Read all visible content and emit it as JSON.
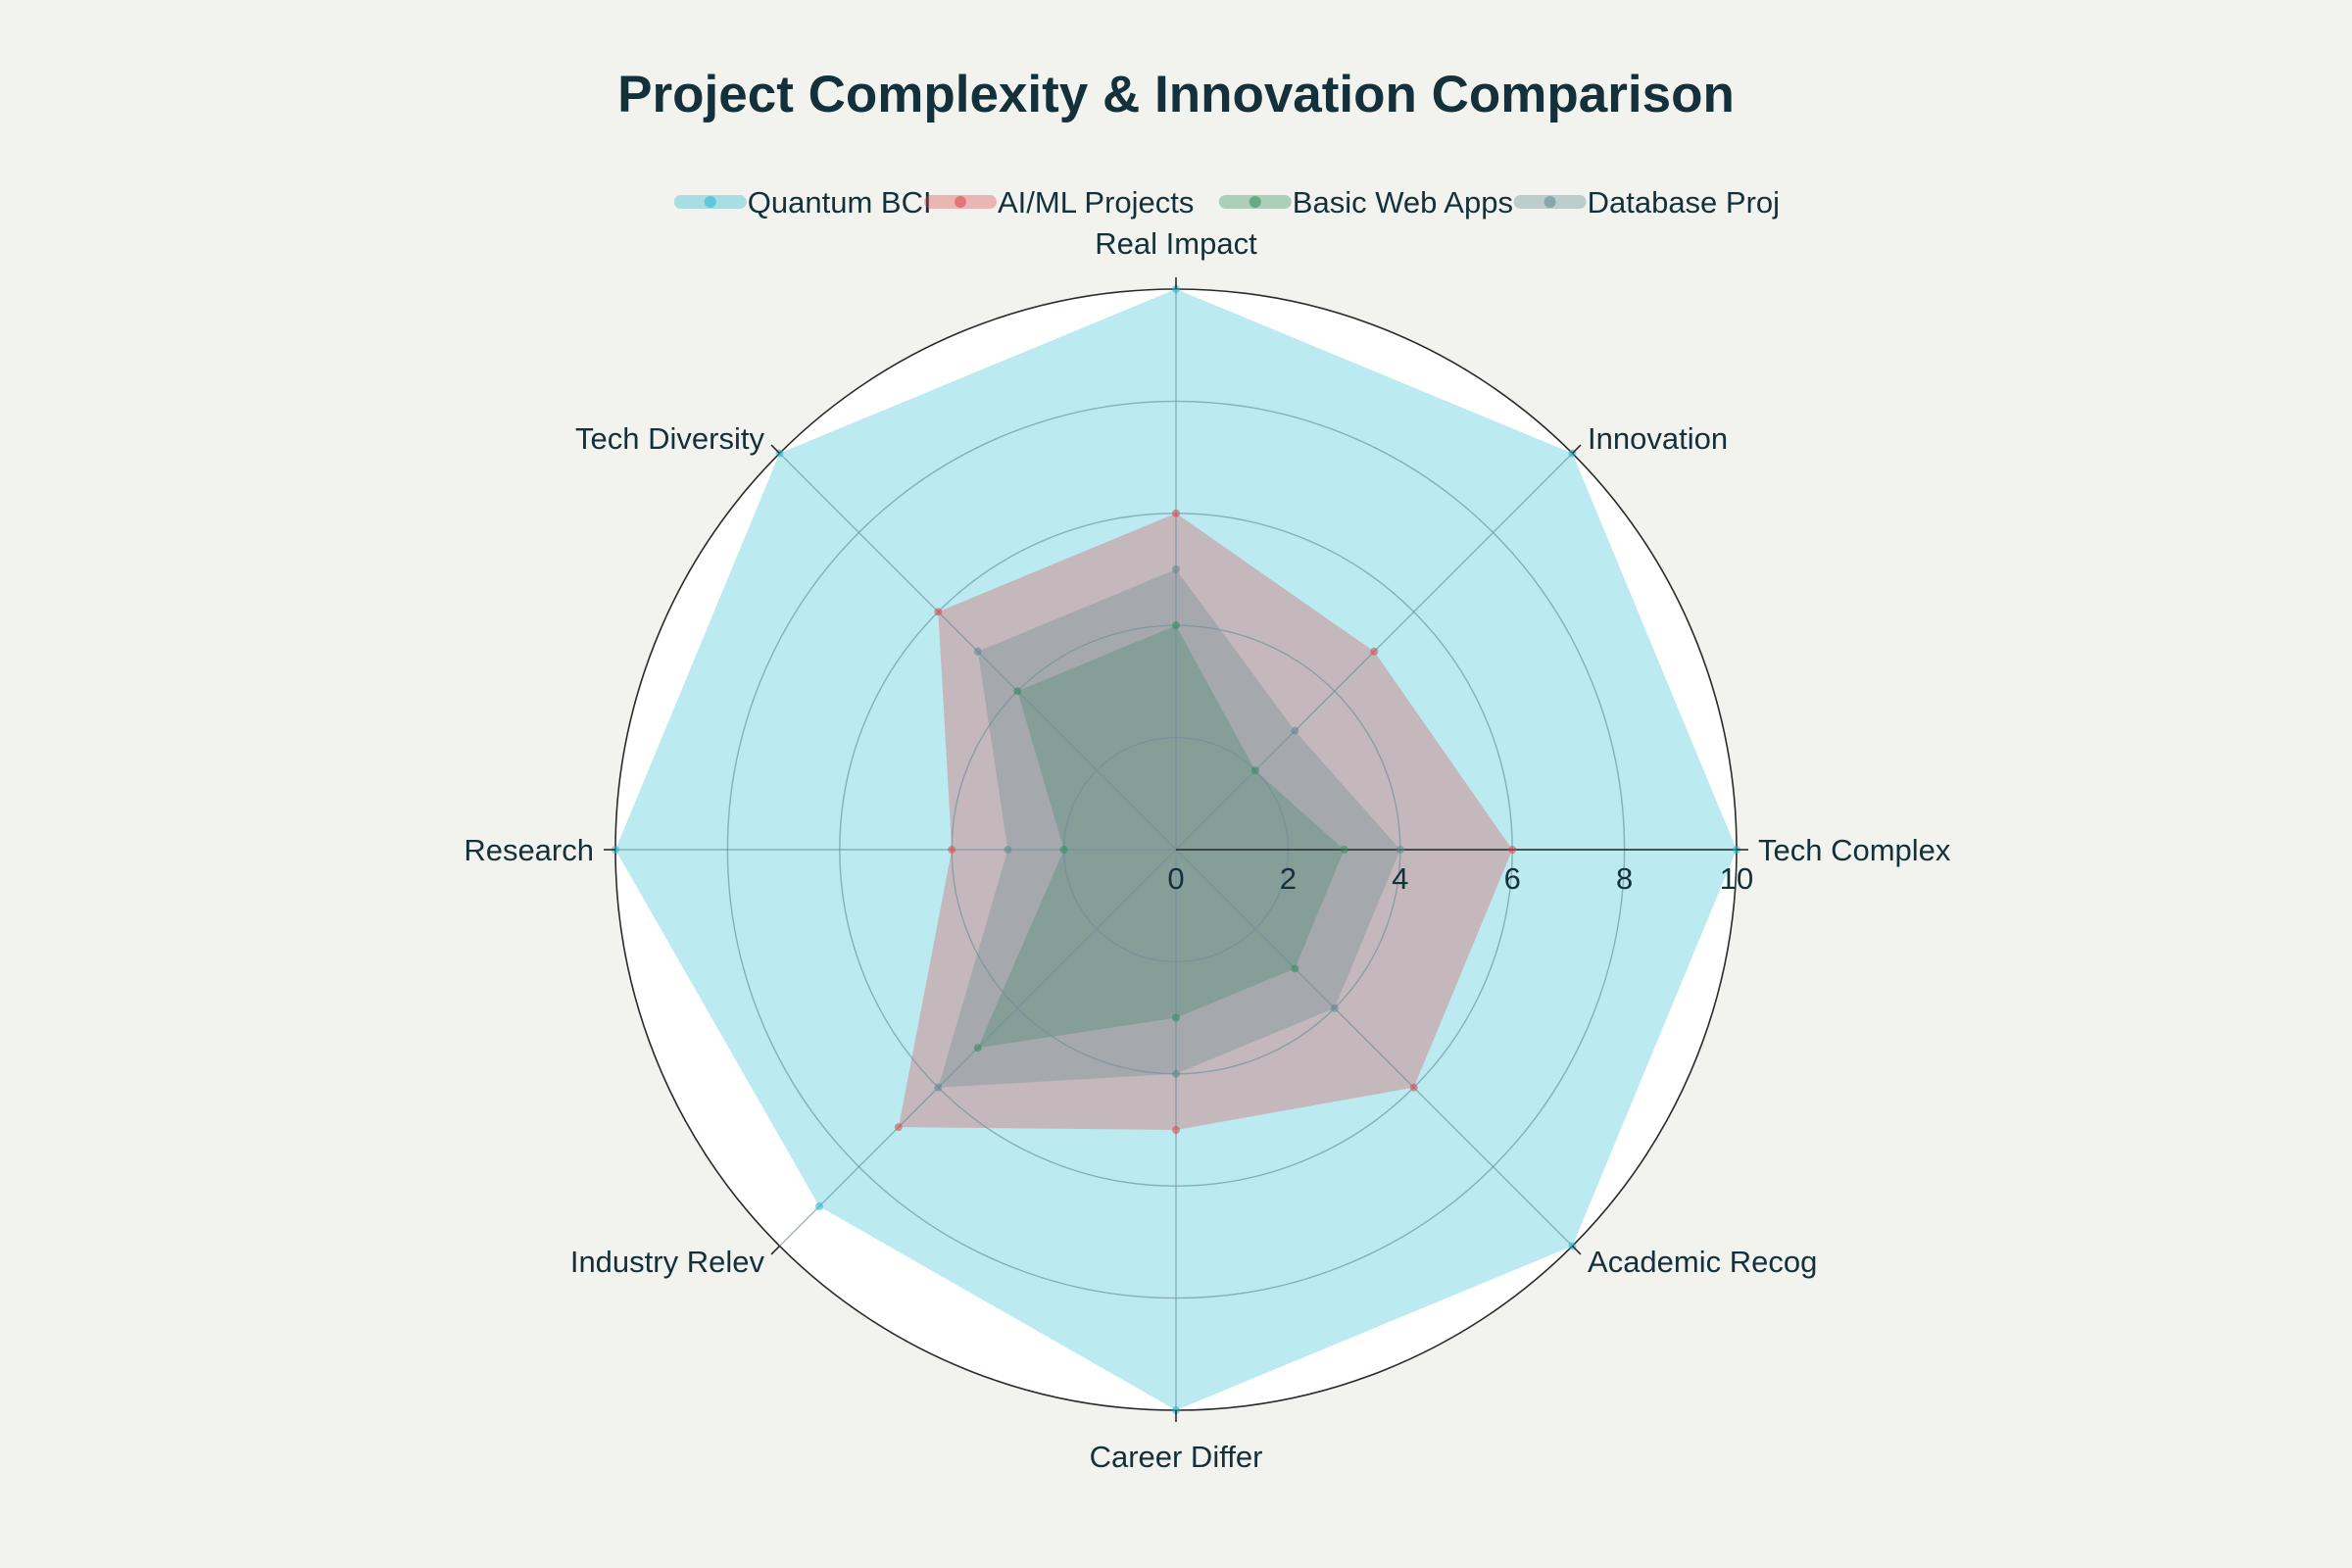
{
  "chart_data": {
    "type": "radar",
    "title": "Project Complexity & Innovation Comparison",
    "axes": [
      "Tech Complex",
      "Innovation",
      "Real Impact",
      "Tech Diversity",
      "Research",
      "Industry Relev",
      "Career Differ",
      "Academic Recog"
    ],
    "range": [
      0,
      10
    ],
    "ticks": [
      "0",
      "2",
      "4",
      "6",
      "8",
      "10"
    ],
    "grid": true,
    "legend_position": "top-center",
    "series": [
      {
        "name": "Quantum BCI",
        "color": "#1fb8cd",
        "values": [
          10,
          10,
          10,
          10,
          10,
          9,
          10,
          10
        ]
      },
      {
        "name": "AI/ML Projects",
        "color": "#db4545",
        "values": [
          6,
          5,
          6,
          6,
          4,
          7,
          5,
          6
        ]
      },
      {
        "name": "Basic Web Apps",
        "color": "#2e8b57",
        "values": [
          3,
          2,
          4,
          4,
          2,
          5,
          3,
          3
        ]
      },
      {
        "name": "Database Proj",
        "color": "#5d878f",
        "values": [
          4,
          3,
          5,
          5,
          3,
          6,
          4,
          4
        ]
      }
    ]
  }
}
